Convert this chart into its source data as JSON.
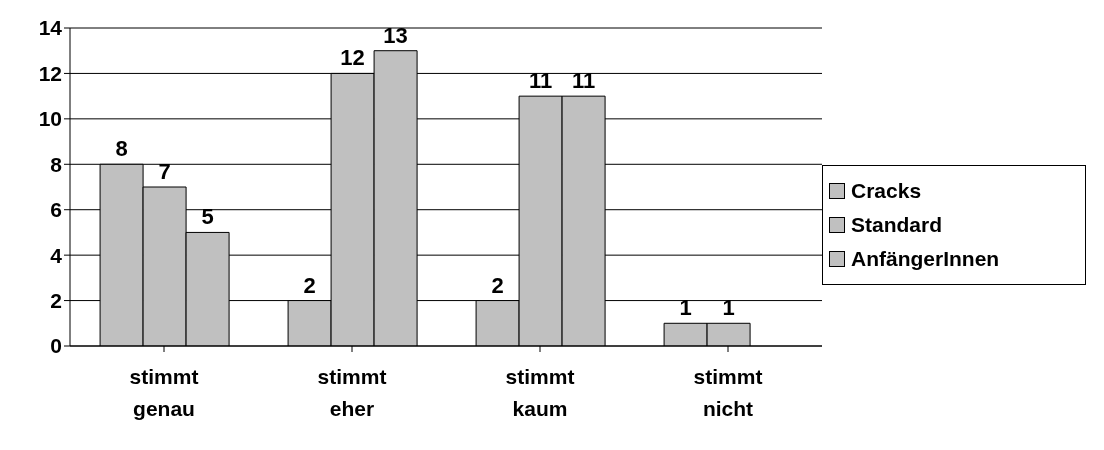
{
  "chart_data": {
    "type": "bar",
    "categories": [
      "stimmt genau",
      "stimmt eher",
      "stimmt kaum",
      "stimmt nicht"
    ],
    "series": [
      {
        "name": "Cracks",
        "color": "#c0c0c0",
        "values": [
          8,
          2,
          2,
          1
        ]
      },
      {
        "name": "Standard",
        "color": "#c0c0c0",
        "values": [
          7,
          12,
          11,
          1
        ]
      },
      {
        "name": "AnfängerInnen",
        "color": "#c0c0c0",
        "values": [
          5,
          13,
          11,
          null
        ]
      }
    ],
    "ylim": [
      0,
      14
    ],
    "yticks": [
      0,
      2,
      4,
      6,
      8,
      10,
      12,
      14
    ],
    "grid": "y",
    "legend": "right",
    "data_labels": true
  }
}
